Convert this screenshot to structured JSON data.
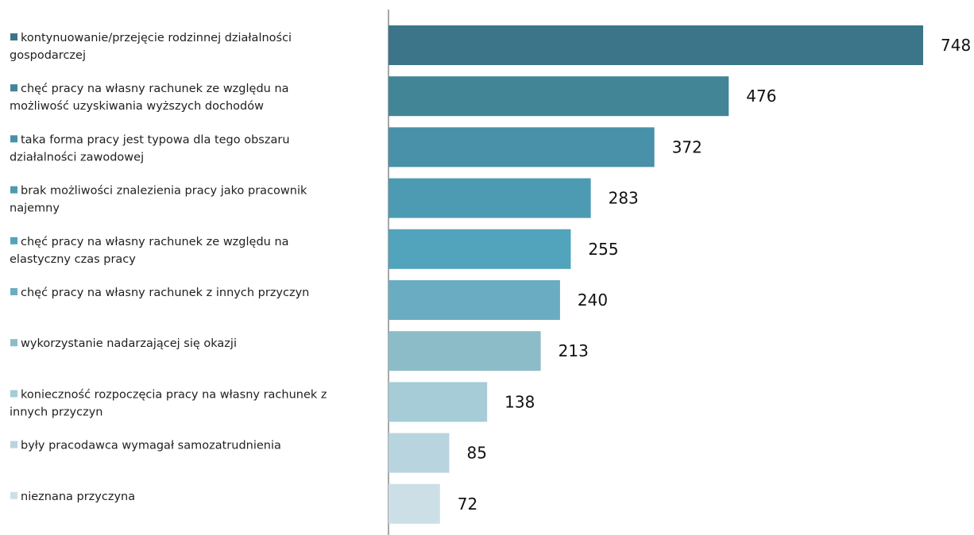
{
  "chart_data": {
    "type": "bar",
    "orientation": "horizontal",
    "title": "",
    "xlabel": "",
    "ylabel": "",
    "xlim": [
      0,
      748
    ],
    "grid": false,
    "legend": "none",
    "categories": [
      "kontynuowanie/przejęcie rodzinnej działalności gospodarczej",
      "chęć pracy na własny rachunek ze względu na możliwość uzyskiwania wyższych dochodów",
      "taka forma pracy jest typowa dla tego obszaru działalności zawodowej",
      "brak możliwości znalezienia pracy jako pracownik najemny",
      "chęć pracy na własny rachunek ze względu na elastyczny czas pracy",
      "chęć pracy na własny rachunek z innych przyczyn",
      "wykorzystanie nadarzającej się okazji",
      "konieczność rozpoczęcia pracy na własny rachunek z innych przyczyn",
      "były pracodawca wymagał samozatrudnienia",
      "nieznana przyczyna"
    ],
    "label_lines": [
      [
        "kontynuowanie/przejęcie rodzinnej działalności",
        "gospodarczej"
      ],
      [
        "chęć pracy na własny rachunek ze względu na",
        "możliwość uzyskiwania wyższych dochodów"
      ],
      [
        "taka forma pracy jest typowa dla tego obszaru",
        "działalności zawodowej"
      ],
      [
        "brak możliwości znalezienia pracy jako pracownik",
        "najemny"
      ],
      [
        "chęć pracy na własny rachunek ze względu na",
        "elastyczny czas pracy"
      ],
      [
        "chęć pracy na własny rachunek z innych przyczyn"
      ],
      [
        "wykorzystanie nadarzającej się okazji"
      ],
      [
        "konieczność rozpoczęcia pracy na własny rachunek z",
        "innych przyczyn"
      ],
      [
        "były pracodawca wymagał samozatrudnienia"
      ],
      [
        "nieznana przyczyna"
      ]
    ],
    "values": [
      748,
      476,
      372,
      283,
      255,
      240,
      213,
      138,
      85,
      72
    ],
    "colors": [
      "#3c7589",
      "#428597",
      "#4891a8",
      "#4c9bb3",
      "#52a3bc",
      "#6aadc2",
      "#8dbcc9",
      "#a5ccd7",
      "#b8d4df",
      "#ccdfe7"
    ]
  }
}
